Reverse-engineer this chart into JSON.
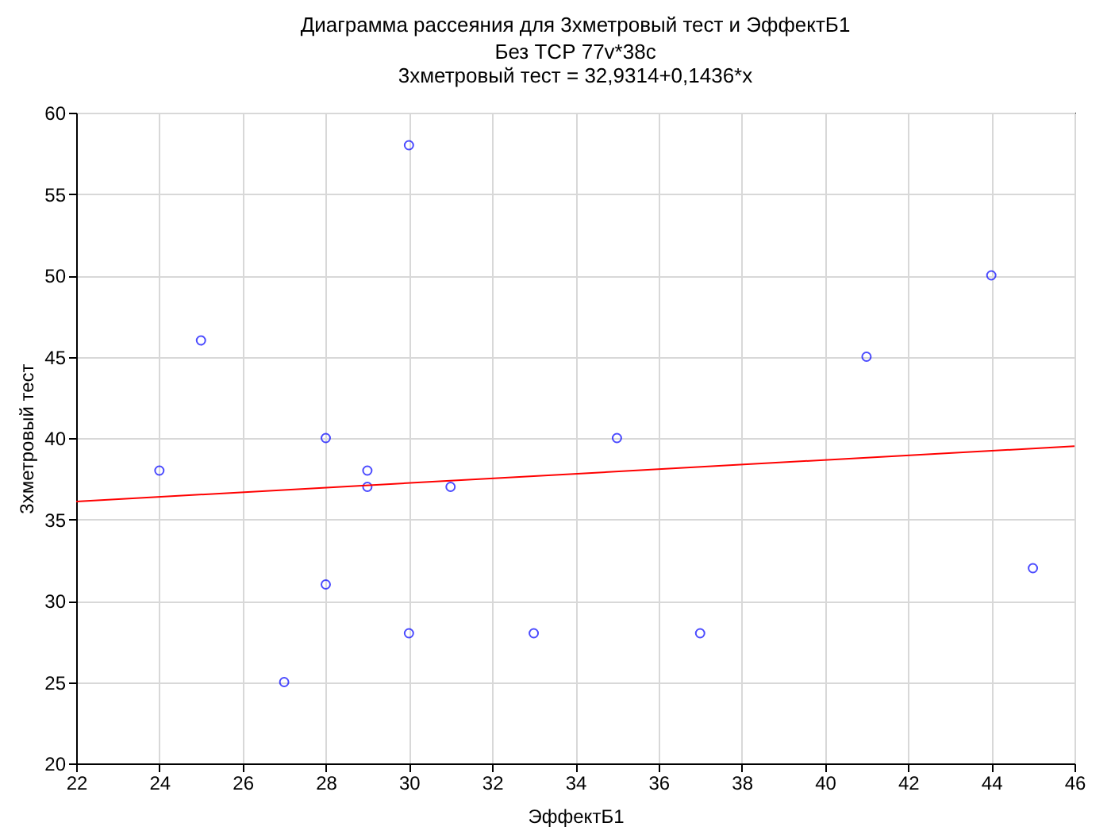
{
  "chart_data": {
    "type": "scatter",
    "title": "Диаграмма рассеяния для 3хметровый тест и ЭффектБ1",
    "subtitle": "Без ТСР 77v*38c",
    "annotations": [
      "3хметровый тест = 32,9314+0,1436*x"
    ],
    "xlabel": "ЭффектБ1",
    "ylabel": "3хметровый тест",
    "xlim": [
      22,
      46
    ],
    "xticks": [
      22,
      24,
      26,
      28,
      30,
      32,
      34,
      36,
      38,
      40,
      42,
      44,
      46
    ],
    "ylim": [
      20,
      60
    ],
    "yticks": [
      20,
      25,
      30,
      35,
      40,
      45,
      50,
      55,
      60
    ],
    "grid": true,
    "marker": "circle",
    "series": [
      {
        "color": "#0000ff",
        "x": [
          24,
          25,
          27,
          28,
          28,
          29,
          29,
          30,
          30,
          31,
          33,
          35,
          37,
          41,
          44,
          45
        ],
        "values": [
          38,
          46,
          25,
          40,
          31,
          38,
          37,
          58,
          28,
          37,
          28,
          40,
          28,
          45,
          50,
          32
        ]
      },
      {
        "type": "line",
        "color": "#ff0000",
        "line_style": "solid",
        "marker": "none",
        "x": [
          22,
          46
        ],
        "values": [
          36.1,
          39.5
        ]
      }
    ]
  }
}
